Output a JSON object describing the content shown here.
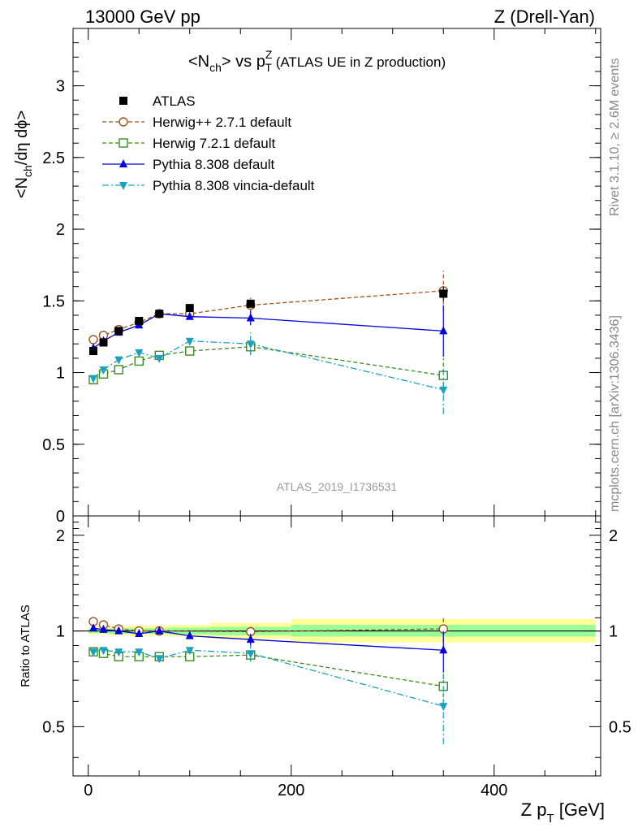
{
  "header": {
    "left": "13000 GeV pp",
    "right": "Z (Drell-Yan)"
  },
  "side_labels": {
    "rivet": "Rivet 3.1.10, ≥ 2.6M events",
    "mcplots": "mcplots.cern.ch [arXiv:1306.3436]"
  },
  "watermark": "ATLAS_2019_I1736531",
  "chart_data": [
    {
      "type": "scatter",
      "panel": "main",
      "title": {
        "pre": "<N",
        "sub1": "ch",
        "mid": "> vs p",
        "sub2": "T",
        "sup2": "Z",
        "post": " (ATLAS UE in Z production)"
      },
      "ylabel": {
        "pre": "<N",
        "sub1": "ch",
        "post": "/dη dϕ>"
      },
      "xlim": [
        -15,
        505
      ],
      "ylim": [
        0,
        3.4
      ],
      "yticks": [
        0,
        0.5,
        1,
        1.5,
        2,
        2.5,
        3
      ],
      "ytick_labels": [
        "0",
        "0.5",
        "1",
        "1.5",
        "2",
        "2.5",
        "3"
      ],
      "legend_position": "top-left",
      "series": [
        {
          "name": "ATLAS",
          "color": "#000000",
          "marker": "square-filled",
          "line": "none",
          "x": [
            5,
            15,
            30,
            50,
            70,
            100,
            160,
            350
          ],
          "y": [
            1.15,
            1.21,
            1.29,
            1.36,
            1.41,
            1.45,
            1.48,
            1.55
          ],
          "err": [
            0.01,
            0.01,
            0.01,
            0.01,
            0.01,
            0.01,
            0.02,
            0.05
          ]
        },
        {
          "name": "Herwig++ 2.7.1 default",
          "color": "#a0521a",
          "marker": "circle-open",
          "line": "dashed",
          "x": [
            5,
            15,
            30,
            50,
            70,
            100,
            160,
            350
          ],
          "y": [
            1.23,
            1.26,
            1.3,
            1.35,
            1.41,
            1.41,
            1.47,
            1.57
          ],
          "err": [
            0.01,
            0.01,
            0.01,
            0.01,
            0.01,
            0.02,
            0.05,
            0.14
          ]
        },
        {
          "name": "Herwig 7.2.1 default",
          "color": "#3c8c1e",
          "marker": "square-open",
          "line": "dashed",
          "x": [
            5,
            15,
            30,
            50,
            70,
            100,
            160,
            350
          ],
          "y": [
            0.95,
            0.99,
            1.02,
            1.08,
            1.12,
            1.15,
            1.18,
            0.98
          ],
          "err": [
            0.01,
            0.01,
            0.01,
            0.01,
            0.01,
            0.02,
            0.05,
            0.12
          ]
        },
        {
          "name": "Pythia 8.308 default",
          "color": "#0000dd",
          "marker": "triangle-up",
          "line": "solid",
          "x": [
            5,
            15,
            30,
            50,
            70,
            100,
            160,
            350
          ],
          "y": [
            1.17,
            1.22,
            1.28,
            1.33,
            1.41,
            1.39,
            1.38,
            1.29
          ],
          "err": [
            0.01,
            0.01,
            0.01,
            0.01,
            0.01,
            0.02,
            0.05,
            0.18
          ]
        },
        {
          "name": "Pythia 8.308 vincia-default",
          "color": "#1aa1c0",
          "marker": "triangle-down",
          "line": "dashdot",
          "x": [
            5,
            15,
            30,
            50,
            70,
            100,
            160,
            350
          ],
          "y": [
            0.96,
            1.02,
            1.09,
            1.14,
            1.1,
            1.22,
            1.2,
            0.88
          ],
          "err": [
            0.01,
            0.01,
            0.01,
            0.01,
            0.01,
            0.02,
            0.08,
            0.17
          ]
        }
      ]
    },
    {
      "type": "scatter",
      "panel": "ratio",
      "xlabel": {
        "pre": "Z p",
        "sub": "T",
        "post": " [GeV]"
      },
      "ylabel": "Ratio to ATLAS",
      "xlim": [
        -15,
        505
      ],
      "ylim": [
        0.35,
        2.3
      ],
      "ylog": true,
      "xticks": [
        0,
        200,
        400
      ],
      "xtick_labels": [
        "0",
        "200",
        "400"
      ],
      "yticks": [
        0.5,
        1,
        2
      ],
      "ytick_labels": [
        "0.5",
        "1",
        "2"
      ],
      "bands": [
        {
          "x0": 0,
          "x1": 10,
          "stat": [
            0.985,
            1.015
          ],
          "total": [
            0.975,
            1.025
          ]
        },
        {
          "x0": 10,
          "x1": 20,
          "stat": [
            0.985,
            1.015
          ],
          "total": [
            0.975,
            1.03
          ]
        },
        {
          "x0": 20,
          "x1": 40,
          "stat": [
            0.98,
            1.02
          ],
          "total": [
            0.97,
            1.035
          ]
        },
        {
          "x0": 40,
          "x1": 60,
          "stat": [
            0.98,
            1.02
          ],
          "total": [
            0.965,
            1.04
          ]
        },
        {
          "x0": 60,
          "x1": 80,
          "stat": [
            0.98,
            1.02
          ],
          "total": [
            0.965,
            1.04
          ]
        },
        {
          "x0": 80,
          "x1": 120,
          "stat": [
            0.975,
            1.025
          ],
          "total": [
            0.96,
            1.045
          ]
        },
        {
          "x0": 120,
          "x1": 200,
          "stat": [
            0.97,
            1.03
          ],
          "total": [
            0.945,
            1.06
          ]
        },
        {
          "x0": 200,
          "x1": 500,
          "stat": [
            0.96,
            1.045
          ],
          "total": [
            0.92,
            1.09
          ]
        }
      ],
      "series": [
        {
          "name": "Herwig++ 2.7.1 default",
          "color": "#a0521a",
          "marker": "circle-open",
          "line": "dashed",
          "x": [
            5,
            15,
            30,
            50,
            70,
            160,
            350
          ],
          "y": [
            1.07,
            1.045,
            1.015,
            1.0,
            1.0,
            0.995,
            1.015
          ],
          "err": [
            0.01,
            0.01,
            0.01,
            0.01,
            0.01,
            0.04,
            0.09
          ]
        },
        {
          "name": "Herwig 7.2.1 default",
          "color": "#3c8c1e",
          "marker": "square-open",
          "line": "dashed",
          "x": [
            5,
            15,
            30,
            50,
            70,
            100,
            160,
            350
          ],
          "y": [
            0.86,
            0.85,
            0.83,
            0.83,
            0.83,
            0.83,
            0.84,
            0.67
          ],
          "err": [
            0.01,
            0.01,
            0.01,
            0.01,
            0.01,
            0.01,
            0.03,
            0.08
          ]
        },
        {
          "name": "Pythia 8.308 default",
          "color": "#0000dd",
          "marker": "triangle-up",
          "line": "solid",
          "x": [
            5,
            15,
            30,
            50,
            70,
            100,
            160,
            350
          ],
          "y": [
            1.02,
            1.01,
            1.0,
            0.98,
            1.0,
            0.965,
            0.94,
            0.87
          ],
          "err": [
            0.01,
            0.01,
            0.01,
            0.01,
            0.01,
            0.01,
            0.04,
            0.13
          ]
        },
        {
          "name": "Pythia 8.308 vincia-default",
          "color": "#1aa1c0",
          "marker": "triangle-down",
          "line": "dashdot",
          "x": [
            5,
            15,
            30,
            50,
            70,
            100,
            160,
            350
          ],
          "y": [
            0.86,
            0.87,
            0.86,
            0.86,
            0.82,
            0.87,
            0.85,
            0.58
          ],
          "err": [
            0.01,
            0.01,
            0.01,
            0.01,
            0.01,
            0.01,
            0.05,
            0.14
          ]
        }
      ]
    }
  ],
  "colors": {
    "stat_band": "#99ff99",
    "total_band": "#ffff99"
  }
}
